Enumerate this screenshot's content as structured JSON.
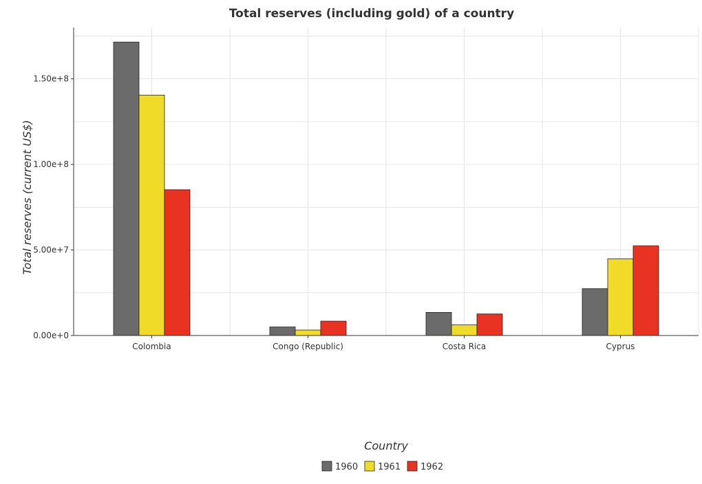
{
  "chart_data": {
    "type": "bar",
    "title": "Total reserves (including gold) of a country",
    "xlabel": "Country",
    "ylabel": "Total reserves (current US$)",
    "categories": [
      "Colombia",
      "Congo (Republic)",
      "Costa Rica",
      "Cyprus"
    ],
    "series": [
      {
        "name": "1960",
        "color": "#6b6b6b",
        "values": [
          171500000,
          5000000,
          13500000,
          27400000
        ]
      },
      {
        "name": "1961",
        "color": "#f0dc28",
        "values": [
          140500000,
          3200000,
          6200000,
          44800000
        ]
      },
      {
        "name": "1962",
        "color": "#e83222",
        "values": [
          85200000,
          8400000,
          12600000,
          52400000
        ]
      }
    ],
    "ylim": [
      0,
      180000000
    ],
    "yticks": [
      0,
      50000000,
      100000000,
      150000000
    ],
    "ytick_labels": [
      "0.00e+0",
      "5.00e+7",
      "1.00e+8",
      "1.50e+8"
    ],
    "grid": true,
    "legend_position": "bottom-center"
  }
}
